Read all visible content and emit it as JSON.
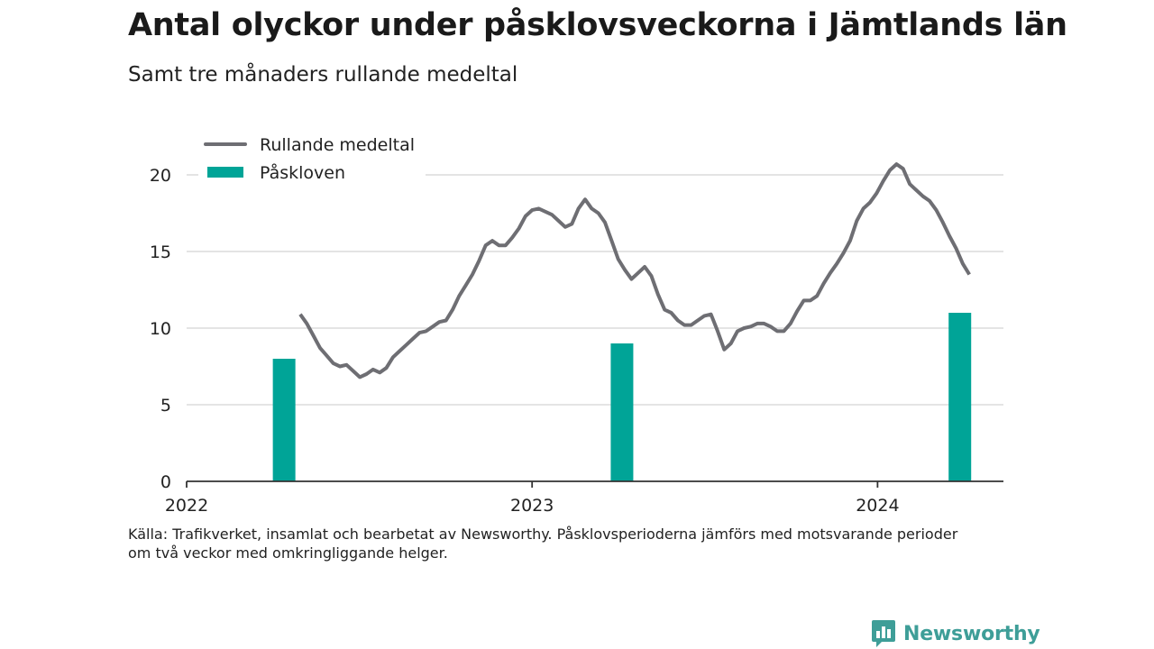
{
  "title": "Antal olyckor under påsklovsveckorna i Jämtlands län",
  "subtitle": "Samt tre månaders rullande medeltal",
  "source_lines": [
    "Källa: Trafikverket, insamlat och bearbetat av Newsworthy. Påsklovsperioderna jämförs med motsvarande perioder",
    "om två veckor med omkringliggande helger."
  ],
  "brand": {
    "name": "Newsworthy",
    "color": "#3e9e98"
  },
  "chart_data": {
    "type": "bar",
    "x_axis": {
      "type": "date",
      "min": "2022-01-01",
      "max": "2024-05-13",
      "ticks": [
        "2022",
        "2023",
        "2024"
      ],
      "tick_dates": [
        "2022-01-01",
        "2023-01-01",
        "2024-01-01"
      ]
    },
    "y_axis": {
      "min": 0,
      "max": 22,
      "ticks": [
        0,
        5,
        10,
        15,
        20
      ]
    },
    "grid": true,
    "legend_position": "top-left",
    "series": [
      {
        "name": "Rullande medeltal",
        "type": "line",
        "color": "#6e6e73",
        "points": [
          [
            "2022-05-01",
            10.9
          ],
          [
            "2022-05-08",
            10.3
          ],
          [
            "2022-05-15",
            9.5
          ],
          [
            "2022-05-22",
            8.7
          ],
          [
            "2022-05-29",
            8.2
          ],
          [
            "2022-06-05",
            7.7
          ],
          [
            "2022-06-12",
            7.5
          ],
          [
            "2022-06-19",
            7.6
          ],
          [
            "2022-06-26",
            7.2
          ],
          [
            "2022-07-03",
            6.8
          ],
          [
            "2022-07-10",
            7.0
          ],
          [
            "2022-07-17",
            7.3
          ],
          [
            "2022-07-24",
            7.1
          ],
          [
            "2022-07-31",
            7.4
          ],
          [
            "2022-08-07",
            8.1
          ],
          [
            "2022-08-14",
            8.5
          ],
          [
            "2022-08-21",
            8.9
          ],
          [
            "2022-08-28",
            9.3
          ],
          [
            "2022-09-04",
            9.7
          ],
          [
            "2022-09-11",
            9.8
          ],
          [
            "2022-09-18",
            10.1
          ],
          [
            "2022-09-25",
            10.4
          ],
          [
            "2022-10-02",
            10.5
          ],
          [
            "2022-10-09",
            11.2
          ],
          [
            "2022-10-16",
            12.1
          ],
          [
            "2022-10-23",
            12.8
          ],
          [
            "2022-10-30",
            13.5
          ],
          [
            "2022-11-06",
            14.4
          ],
          [
            "2022-11-13",
            15.4
          ],
          [
            "2022-11-20",
            15.7
          ],
          [
            "2022-11-27",
            15.4
          ],
          [
            "2022-12-04",
            15.4
          ],
          [
            "2022-12-11",
            15.9
          ],
          [
            "2022-12-18",
            16.5
          ],
          [
            "2022-12-25",
            17.3
          ],
          [
            "2023-01-01",
            17.7
          ],
          [
            "2023-01-08",
            17.8
          ],
          [
            "2023-01-15",
            17.6
          ],
          [
            "2023-01-22",
            17.4
          ],
          [
            "2023-01-29",
            17.0
          ],
          [
            "2023-02-05",
            16.6
          ],
          [
            "2023-02-12",
            16.8
          ],
          [
            "2023-02-19",
            17.8
          ],
          [
            "2023-02-26",
            18.4
          ],
          [
            "2023-03-05",
            17.8
          ],
          [
            "2023-03-12",
            17.5
          ],
          [
            "2023-03-19",
            16.9
          ],
          [
            "2023-03-26",
            15.7
          ],
          [
            "2023-04-02",
            14.5
          ],
          [
            "2023-04-09",
            13.8
          ],
          [
            "2023-04-16",
            13.2
          ],
          [
            "2023-04-23",
            13.6
          ],
          [
            "2023-04-30",
            14.0
          ],
          [
            "2023-05-07",
            13.4
          ],
          [
            "2023-05-14",
            12.2
          ],
          [
            "2023-05-21",
            11.2
          ],
          [
            "2023-05-28",
            11.0
          ],
          [
            "2023-06-04",
            10.5
          ],
          [
            "2023-06-11",
            10.2
          ],
          [
            "2023-06-18",
            10.2
          ],
          [
            "2023-06-25",
            10.5
          ],
          [
            "2023-07-02",
            10.8
          ],
          [
            "2023-07-09",
            10.9
          ],
          [
            "2023-07-16",
            9.8
          ],
          [
            "2023-07-23",
            8.6
          ],
          [
            "2023-07-30",
            9.0
          ],
          [
            "2023-08-06",
            9.8
          ],
          [
            "2023-08-13",
            10.0
          ],
          [
            "2023-08-20",
            10.1
          ],
          [
            "2023-08-27",
            10.3
          ],
          [
            "2023-09-03",
            10.3
          ],
          [
            "2023-09-10",
            10.1
          ],
          [
            "2023-09-17",
            9.8
          ],
          [
            "2023-09-24",
            9.8
          ],
          [
            "2023-10-01",
            10.3
          ],
          [
            "2023-10-08",
            11.1
          ],
          [
            "2023-10-15",
            11.8
          ],
          [
            "2023-10-22",
            11.8
          ],
          [
            "2023-10-29",
            12.1
          ],
          [
            "2023-11-05",
            12.9
          ],
          [
            "2023-11-12",
            13.6
          ],
          [
            "2023-11-19",
            14.2
          ],
          [
            "2023-11-26",
            14.9
          ],
          [
            "2023-12-03",
            15.7
          ],
          [
            "2023-12-10",
            17.0
          ],
          [
            "2023-12-17",
            17.8
          ],
          [
            "2023-12-24",
            18.2
          ],
          [
            "2023-12-31",
            18.8
          ],
          [
            "2024-01-07",
            19.6
          ],
          [
            "2024-01-14",
            20.3
          ],
          [
            "2024-01-21",
            20.7
          ],
          [
            "2024-01-28",
            20.4
          ],
          [
            "2024-02-04",
            19.4
          ],
          [
            "2024-02-11",
            19.0
          ],
          [
            "2024-02-18",
            18.6
          ],
          [
            "2024-02-25",
            18.3
          ],
          [
            "2024-03-03",
            17.7
          ],
          [
            "2024-03-10",
            16.9
          ],
          [
            "2024-03-17",
            16.0
          ],
          [
            "2024-03-24",
            15.2
          ],
          [
            "2024-03-31",
            14.2
          ],
          [
            "2024-04-07",
            13.5
          ]
        ]
      },
      {
        "name": "Påskloven",
        "type": "bar",
        "color": "#00a497",
        "points": [
          [
            "2022-04-14",
            8
          ],
          [
            "2023-04-06",
            9
          ],
          [
            "2024-03-28",
            11
          ]
        ]
      }
    ]
  }
}
